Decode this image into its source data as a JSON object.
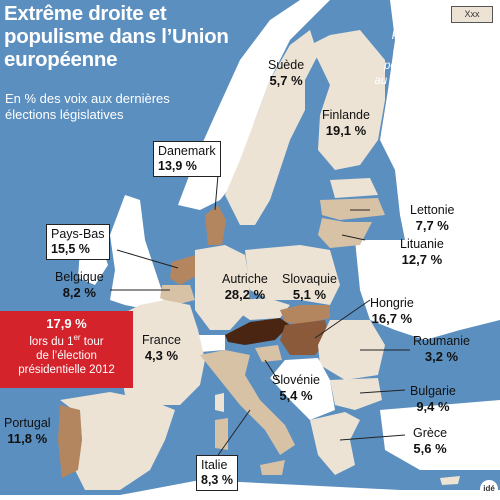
{
  "title": "Extrême droite et populisme dans l’Union européenne",
  "subtitle": "En % des voix aux dernières élections législatives",
  "legend": {
    "swatch_label": "Xxx",
    "text": "Pays dont les partis d’extrême-droite ou populistes participent au gouvernement ou le soutiennent"
  },
  "colors": {
    "sea": "#5b8fbf",
    "non_eu": "#ffffff",
    "eu_base": "#ece3d5",
    "low": "#d8c2a6",
    "mid": "#b48660",
    "high": "#8a5a3a",
    "very_high": "#4a2612",
    "france_note": "#d5232c"
  },
  "countries": {
    "suede": {
      "name": "Suède",
      "value": "5,7 %"
    },
    "finlande": {
      "name": "Finlande",
      "value": "19,1 %"
    },
    "danemark": {
      "name": "Danemark",
      "value": "13,9 %"
    },
    "lettonie": {
      "name": "Lettonie",
      "value": "7,7 %"
    },
    "lituanie": {
      "name": "Lituanie",
      "value": "12,7 %"
    },
    "paysbas": {
      "name": "Pays-Bas",
      "value": "15,5 %"
    },
    "belgique": {
      "name": "Belgique",
      "value": "8,2 %"
    },
    "autriche": {
      "name": "Autriche",
      "value": "28,2 %"
    },
    "slovaquie": {
      "name": "Slovaquie",
      "value": "5,1 %"
    },
    "hongrie": {
      "name": "Hongrie",
      "value": "16,7 %"
    },
    "france": {
      "name": "France",
      "value": "4,3 %"
    },
    "roumanie": {
      "name": "Roumanie",
      "value": "3,2 %"
    },
    "slovenie": {
      "name": "Slovénie",
      "value": "5,4 %"
    },
    "bulgarie": {
      "name": "Bulgarie",
      "value": "9,4 %"
    },
    "portugal": {
      "name": "Portugal",
      "value": "11,8 %"
    },
    "grece": {
      "name": "Grèce",
      "value": "5,6 %"
    },
    "italie": {
      "name": "Italie",
      "value": "8,3 %"
    }
  },
  "france_note": {
    "value": "17,9 %",
    "line1_pre": "lors du 1",
    "line1_sup": "er",
    "line1_post": " tour",
    "line2": "de l’élection",
    "line3": "présidentielle 2012"
  },
  "logo": "idé"
}
